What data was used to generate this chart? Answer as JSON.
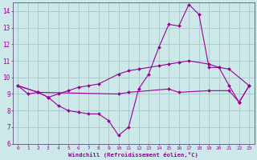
{
  "xlabel": "Windchill (Refroidissement éolien,°C)",
  "bg_color": "#cce8e8",
  "grid_color": "#aacccc",
  "line_color": "#990099",
  "line1_x": [
    0,
    1,
    2,
    3,
    4,
    5,
    6,
    7,
    8,
    9,
    10,
    11,
    12,
    13,
    14,
    15,
    16,
    17,
    18,
    19,
    20,
    21,
    22,
    23
  ],
  "line1_y": [
    9.5,
    9.0,
    9.1,
    8.8,
    8.3,
    8.0,
    7.9,
    7.8,
    7.8,
    7.4,
    6.5,
    7.0,
    9.3,
    10.2,
    11.8,
    13.2,
    13.1,
    14.4,
    13.8,
    10.6,
    10.6,
    9.5,
    8.5,
    9.5
  ],
  "line2_x": [
    0,
    2,
    3,
    4,
    5,
    6,
    7,
    8,
    10,
    11,
    12,
    14,
    15,
    16,
    17,
    19,
    20,
    21,
    23
  ],
  "line2_y": [
    9.5,
    9.1,
    8.8,
    9.0,
    9.2,
    9.4,
    9.5,
    9.6,
    10.2,
    10.4,
    10.5,
    10.7,
    10.8,
    10.9,
    11.0,
    10.8,
    10.6,
    10.5,
    9.5
  ],
  "line3_x": [
    0,
    2,
    10,
    11,
    15,
    16,
    19,
    21,
    22,
    23
  ],
  "line3_y": [
    9.5,
    9.1,
    9.0,
    9.1,
    9.3,
    9.1,
    9.2,
    9.2,
    8.5,
    9.5
  ],
  "xlim": [
    -0.5,
    23.5
  ],
  "ylim": [
    6,
    14.5
  ],
  "yticks": [
    6,
    7,
    8,
    9,
    10,
    11,
    12,
    13,
    14
  ],
  "xticks": [
    0,
    1,
    2,
    3,
    4,
    5,
    6,
    7,
    8,
    9,
    10,
    11,
    12,
    13,
    14,
    15,
    16,
    17,
    18,
    19,
    20,
    21,
    22,
    23
  ]
}
